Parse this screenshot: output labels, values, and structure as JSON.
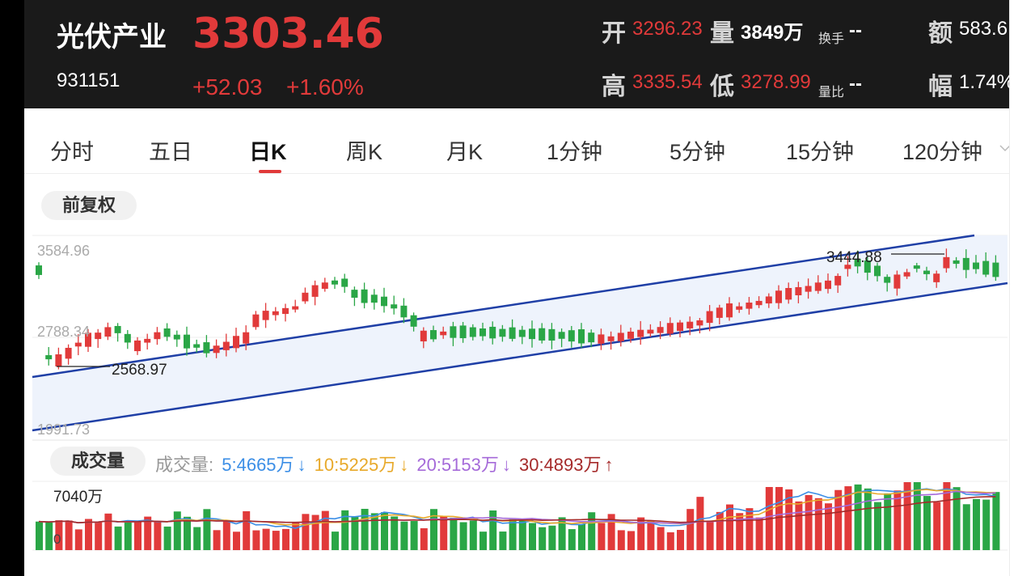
{
  "header": {
    "title": "光伏产业",
    "code": "931151",
    "price": "3303.46",
    "change": "+52.03",
    "change_pct": "+1.60%",
    "stats": {
      "open_label": "开",
      "open_value": "3296.23",
      "volume_label": "量",
      "volume_value": "3849万",
      "turnover_label": "换手",
      "turnover_value": "--",
      "amount_label": "额",
      "amount_value": "583.6",
      "high_label": "高",
      "high_value": "3335.54",
      "low_label": "低",
      "low_value": "3278.99",
      "ratio_label": "量比",
      "ratio_value": "--",
      "amp_label": "幅",
      "amp_value": "1.74%"
    }
  },
  "tabs": [
    {
      "label": "分时"
    },
    {
      "label": "五日"
    },
    {
      "label": "日K"
    },
    {
      "label": "周K"
    },
    {
      "label": "月K"
    },
    {
      "label": "1分钟"
    },
    {
      "label": "5分钟"
    },
    {
      "label": "15分钟"
    },
    {
      "label": "120分钟"
    }
  ],
  "tabs_dropdown_icon": "chevron-down-icon",
  "adjust_button": "前复权",
  "kline": {
    "y_ticks": [
      "3584.96",
      "2788.34",
      "1991.73"
    ],
    "y_range": [
      1991.73,
      3584.96
    ],
    "high_marker": "3444.88",
    "low_marker": "2568.97",
    "up_color": "#e13a3a",
    "down_color": "#2aa646",
    "channel_color": "#1f3fa6"
  },
  "volume": {
    "button": "成交量",
    "legend_label": "成交量:",
    "ma5": "5:4665万",
    "ma10": "10:5225万",
    "ma20": "20:5153万",
    "ma30": "30:4893万",
    "ma5_color": "#3b8ee6",
    "ma10_color": "#e8a92a",
    "ma20_color": "#a56ad9",
    "ma30_color": "#a52a2a",
    "max_label": "7040万",
    "zero_label": "0"
  }
}
